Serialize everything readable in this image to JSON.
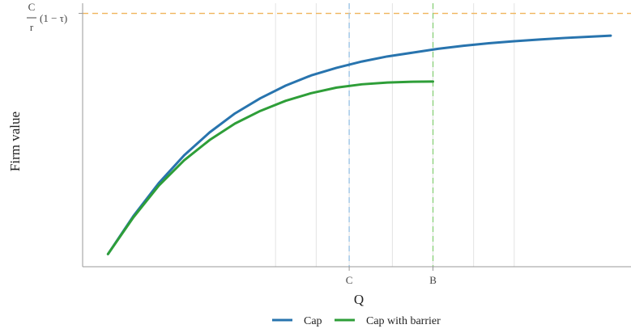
{
  "chart_data": {
    "type": "line",
    "title": "",
    "xlabel": "Q",
    "ylabel": "Firm value",
    "x_ticks": [
      {
        "label": "C",
        "x": 0.525
      },
      {
        "label": "B",
        "x": 0.69
      }
    ],
    "y_reference": {
      "label_numerator": "C",
      "label_denominator": "r",
      "label_tail": "(1 − τ)",
      "y": 1.0,
      "color": "#F0B45A"
    },
    "vlines": [
      {
        "x": 0.525,
        "color": "#9EC6E6"
      },
      {
        "x": 0.69,
        "color": "#8ED27E"
      }
    ],
    "grid_x": [
      0.38,
      0.46,
      0.525,
      0.61,
      0.69,
      0.77,
      0.85
    ],
    "xlim": [
      0,
      1.08
    ],
    "ylim": [
      0,
      1.04
    ],
    "series": [
      {
        "name": "Cap",
        "color": "#2874AE",
        "x": [
          0.05,
          0.1,
          0.15,
          0.2,
          0.25,
          0.3,
          0.35,
          0.4,
          0.45,
          0.5,
          0.55,
          0.6,
          0.65,
          0.7,
          0.75,
          0.8,
          0.85,
          0.9,
          0.95,
          1.0,
          1.04
        ],
        "y": [
          0.05,
          0.2,
          0.33,
          0.44,
          0.53,
          0.605,
          0.665,
          0.715,
          0.755,
          0.785,
          0.81,
          0.83,
          0.845,
          0.86,
          0.872,
          0.882,
          0.89,
          0.897,
          0.903,
          0.908,
          0.912
        ]
      },
      {
        "name": "Cap with barrier",
        "color": "#2E9E38",
        "x": [
          0.05,
          0.1,
          0.15,
          0.2,
          0.25,
          0.3,
          0.35,
          0.4,
          0.45,
          0.5,
          0.55,
          0.6,
          0.65,
          0.69
        ],
        "y": [
          0.05,
          0.195,
          0.32,
          0.42,
          0.5,
          0.565,
          0.615,
          0.655,
          0.685,
          0.707,
          0.72,
          0.727,
          0.73,
          0.731
        ]
      }
    ],
    "legend": {
      "position": "bottom"
    },
    "grid": true
  }
}
